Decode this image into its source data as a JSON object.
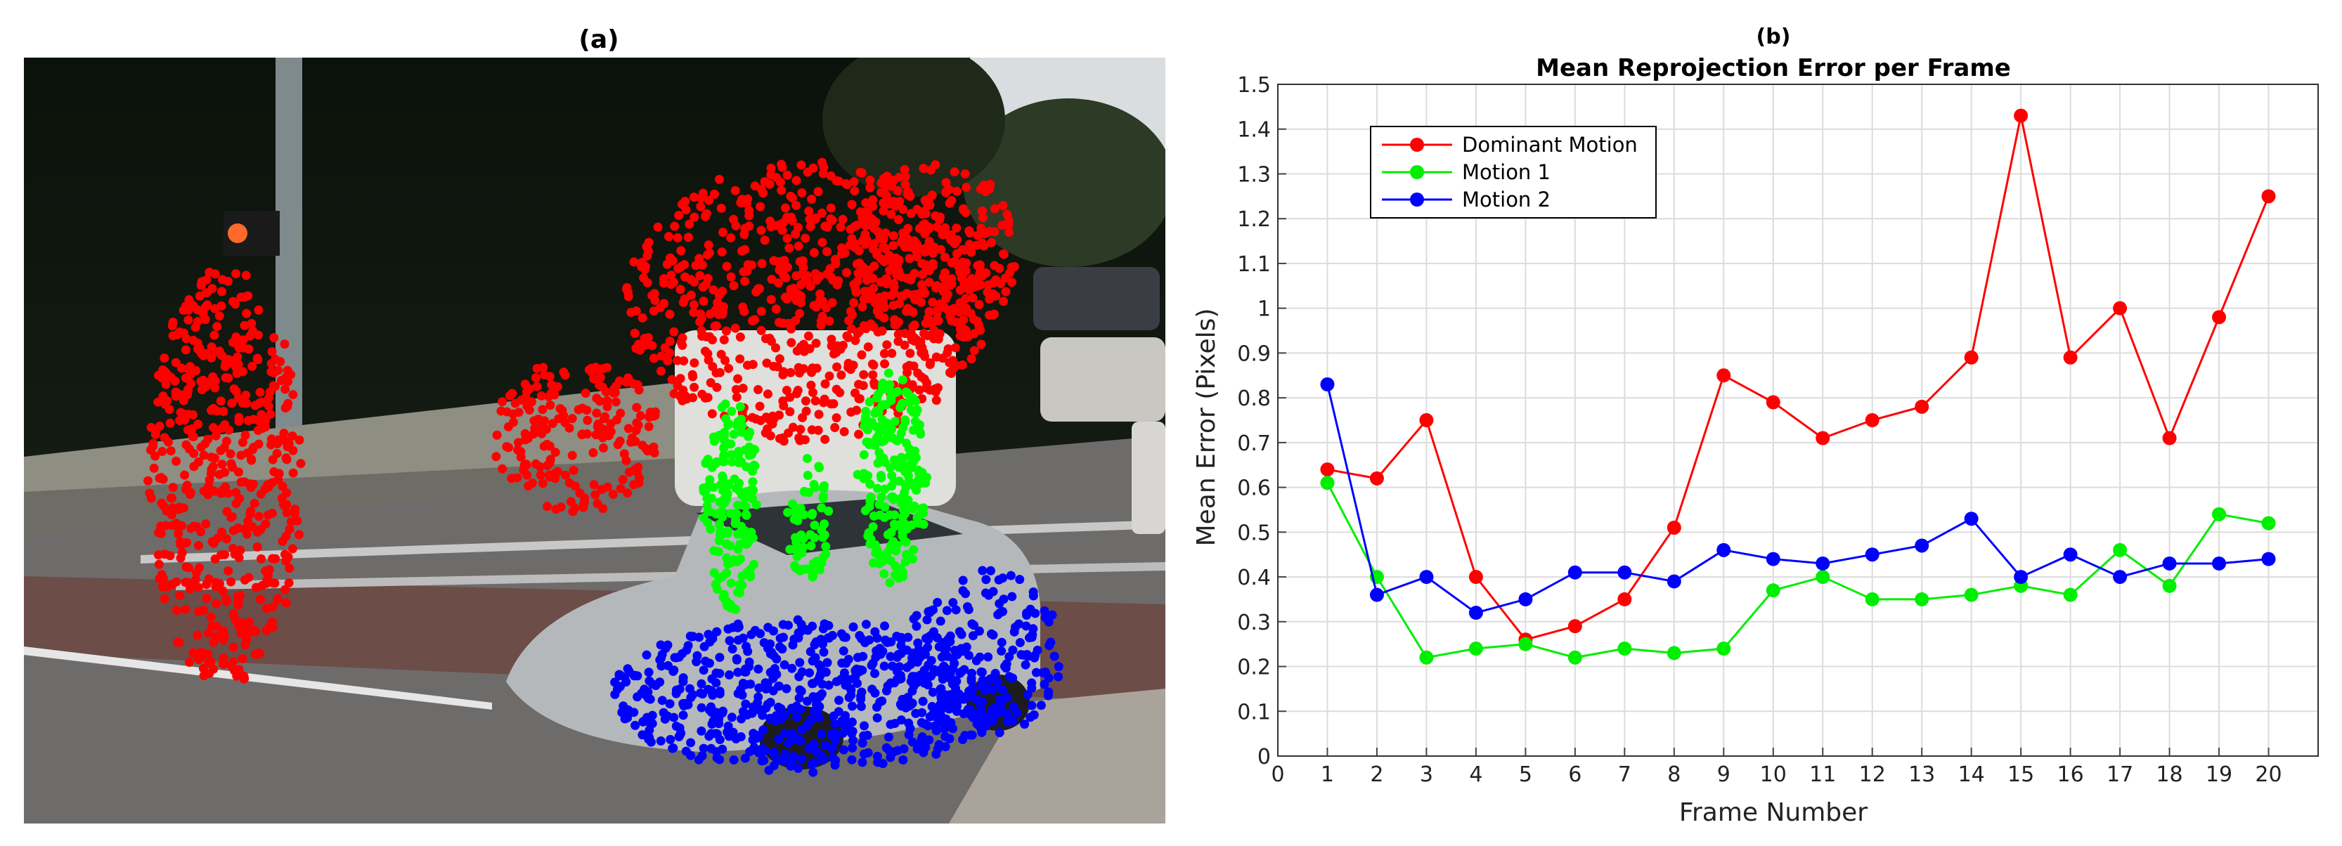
{
  "panel_a": {
    "label": "(a)",
    "image_description_icon": "street-scene-car-photo",
    "point_colors": {
      "dominant": "#ff0000",
      "motion1": "#00ff00",
      "motion2": "#0000ff"
    }
  },
  "panel_b": {
    "label": "(b)"
  },
  "chart_data": {
    "type": "line",
    "title": "Mean Reprojection Error per Frame",
    "xlabel": "Frame Number",
    "ylabel": "Mean Error (Pixels)",
    "xlim": [
      0,
      21
    ],
    "ylim": [
      0,
      1.5
    ],
    "x_ticks": [
      0,
      1,
      2,
      3,
      4,
      5,
      6,
      7,
      8,
      9,
      10,
      11,
      12,
      13,
      14,
      15,
      16,
      17,
      18,
      19,
      20
    ],
    "y_ticks": [
      "0",
      "0.1",
      "0.2",
      "0.3",
      "0.4",
      "0.5",
      "0.6",
      "0.7",
      "0.8",
      "0.9",
      "1",
      "1.1",
      "1.2",
      "1.3",
      "1.4",
      "1.5"
    ],
    "grid": true,
    "legend_position": "top-left",
    "x": [
      1,
      2,
      3,
      4,
      5,
      6,
      7,
      8,
      9,
      10,
      11,
      12,
      13,
      14,
      15,
      16,
      17,
      18,
      19,
      20
    ],
    "series": [
      {
        "name": "Dominant Motion",
        "color": "#ff0000",
        "values": [
          0.64,
          0.62,
          0.75,
          0.4,
          0.26,
          0.29,
          0.35,
          0.51,
          0.85,
          0.79,
          0.71,
          0.75,
          0.78,
          0.89,
          1.43,
          0.89,
          1.0,
          0.71,
          0.98,
          1.25
        ]
      },
      {
        "name": "Motion 1",
        "color": "#00ee00",
        "values": [
          0.61,
          0.4,
          0.22,
          0.24,
          0.25,
          0.22,
          0.24,
          0.23,
          0.24,
          0.37,
          0.4,
          0.35,
          0.35,
          0.36,
          0.38,
          0.36,
          0.46,
          0.38,
          0.54,
          0.52
        ]
      },
      {
        "name": "Motion 2",
        "color": "#0000ff",
        "values": [
          0.83,
          0.36,
          0.4,
          0.32,
          0.35,
          0.41,
          0.41,
          0.39,
          0.46,
          0.44,
          0.43,
          0.45,
          0.47,
          0.53,
          0.4,
          0.45,
          0.4,
          0.43,
          0.43,
          0.44
        ]
      }
    ]
  }
}
